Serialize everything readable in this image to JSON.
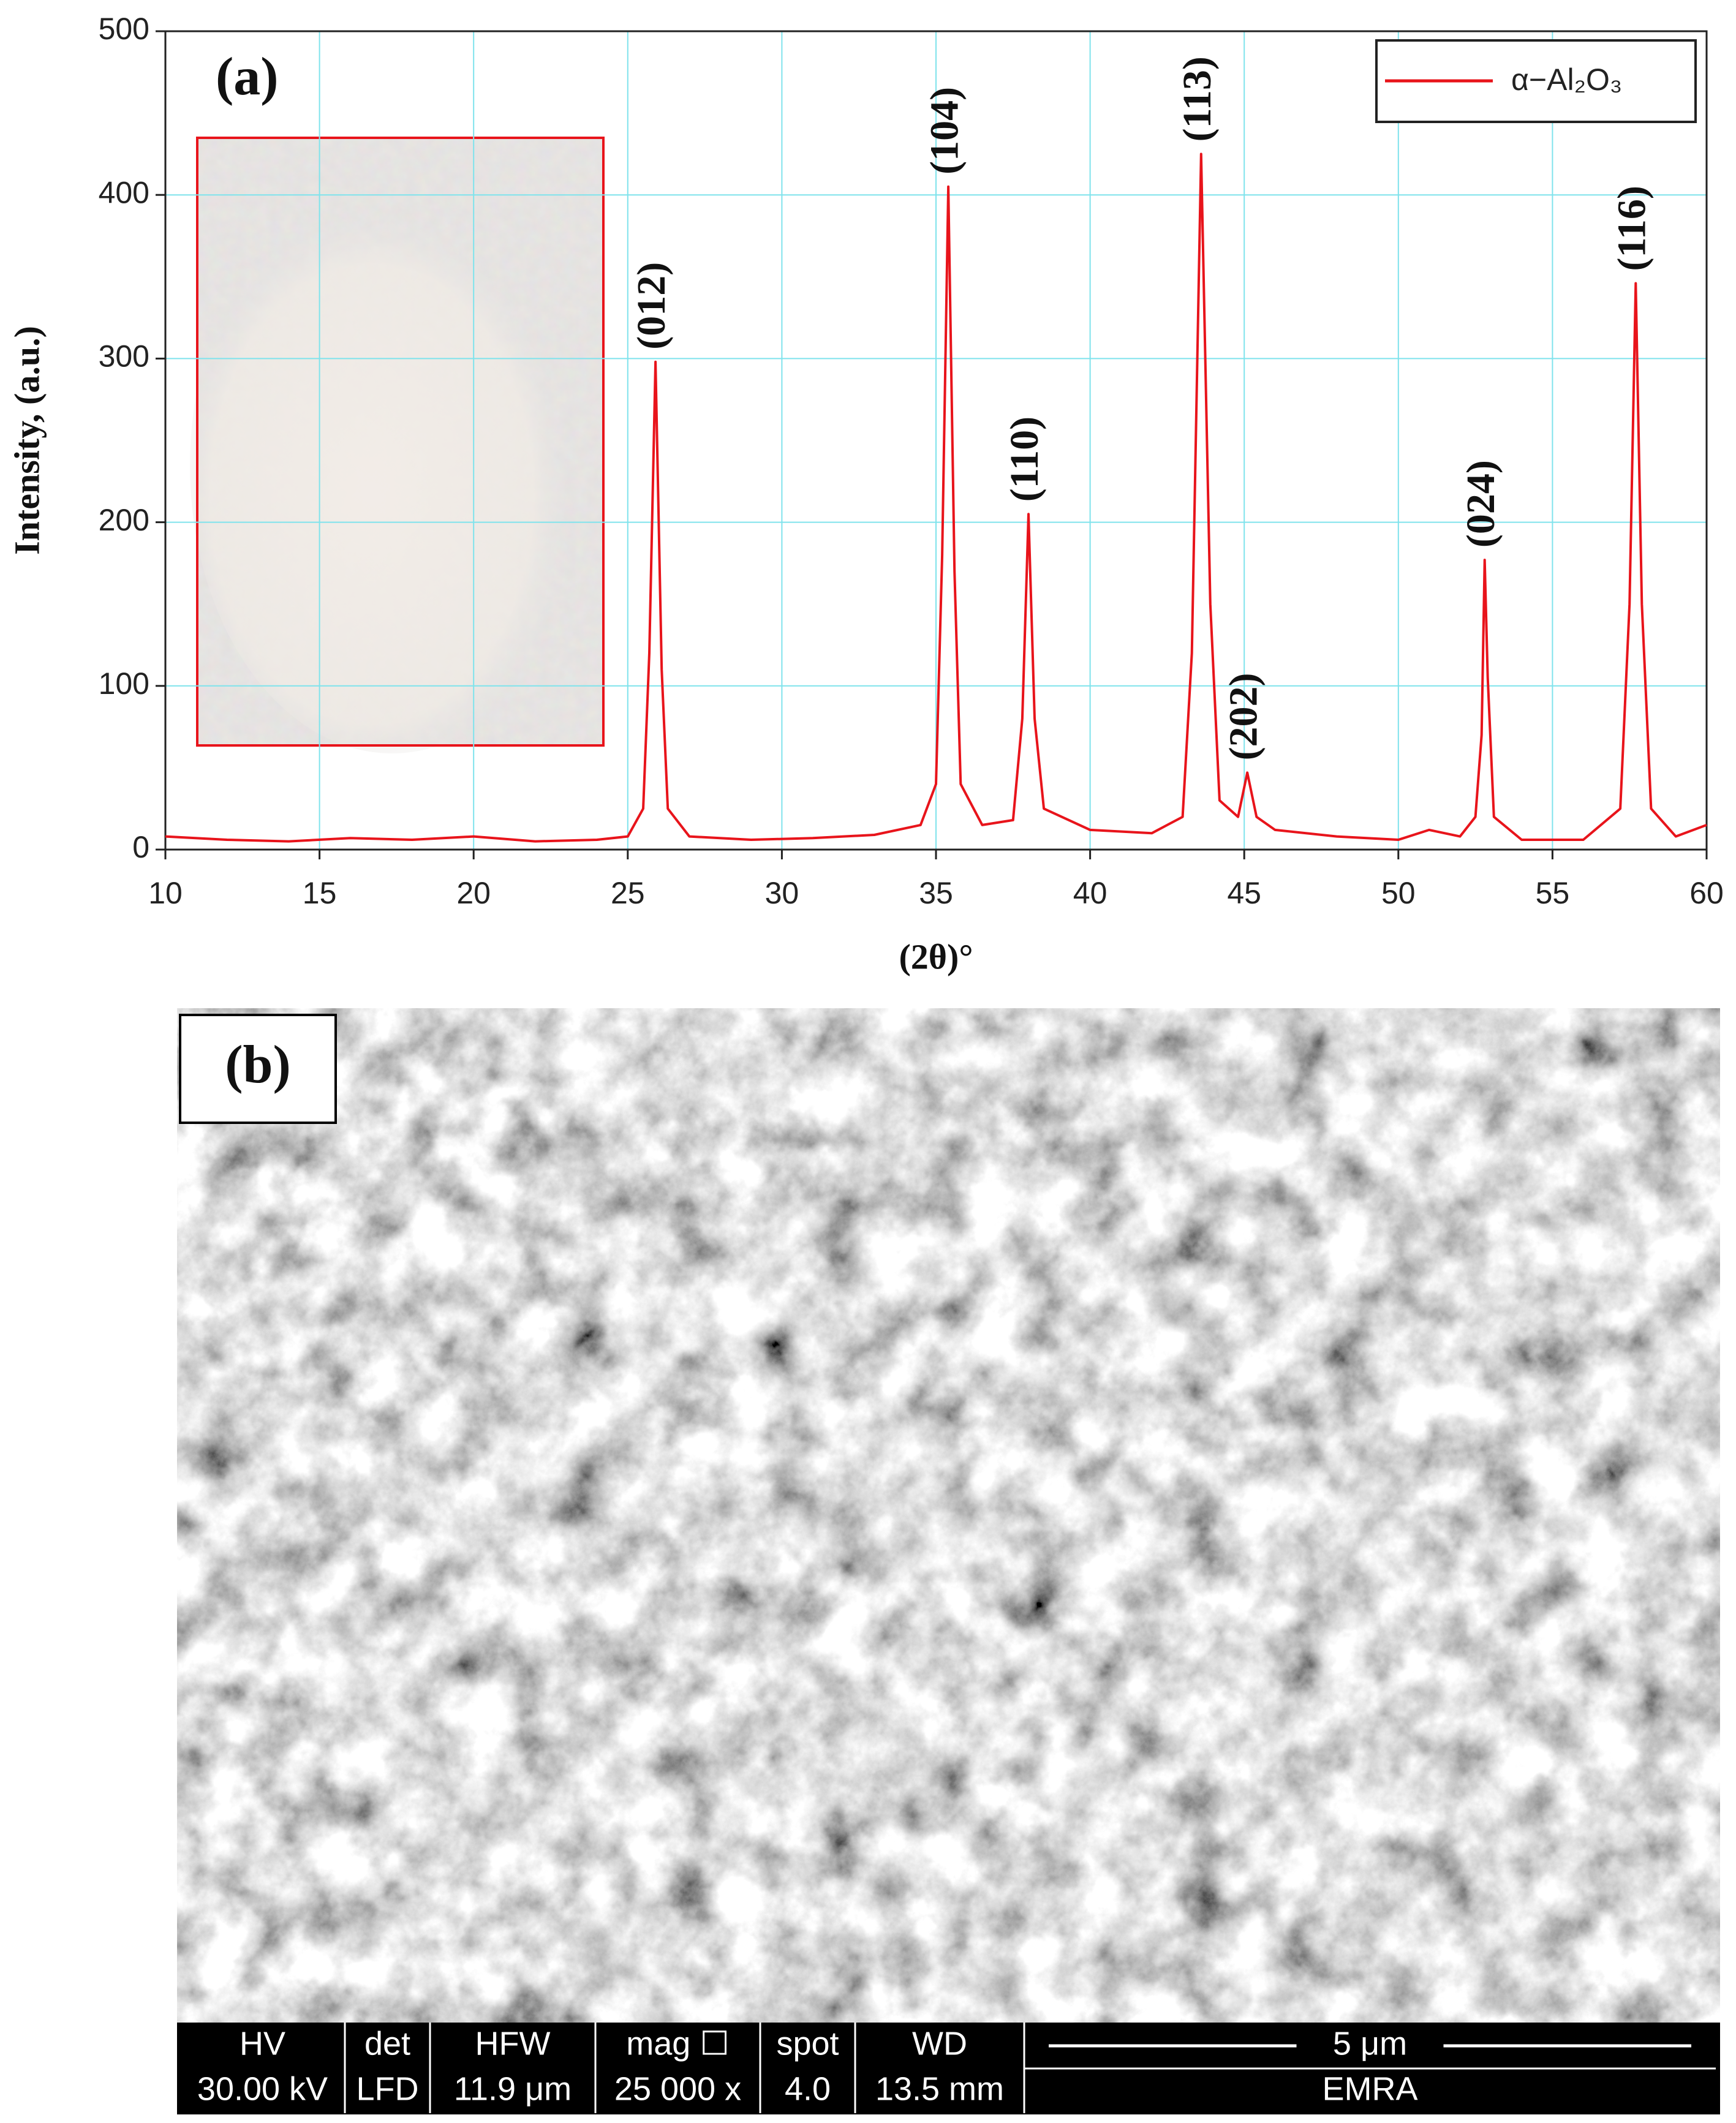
{
  "chart_data": {
    "type": "line",
    "panel_label": "(a)",
    "xlabel": "(2θ)°",
    "ylabel": "Intensity, (a.u.)",
    "x": [
      10,
      12,
      14,
      16,
      18,
      20,
      22,
      24,
      25,
      25.5,
      25.7,
      25.9,
      26.1,
      26.3,
      27,
      29,
      31,
      33,
      34.5,
      35,
      35.2,
      35.4,
      35.6,
      35.8,
      36.5,
      37.5,
      37.8,
      38.0,
      38.2,
      38.5,
      40,
      42,
      43,
      43.3,
      43.6,
      43.9,
      44.2,
      44.8,
      45.1,
      45.4,
      46,
      48,
      50,
      51,
      52,
      52.5,
      52.7,
      52.8,
      52.9,
      53.1,
      54,
      56,
      57.2,
      57.5,
      57.7,
      57.9,
      58.2,
      59,
      60
    ],
    "series": [
      {
        "name": "α−Al₂O₃",
        "color": "#e8141b",
        "values": [
          8,
          6,
          5,
          7,
          6,
          8,
          5,
          6,
          8,
          25,
          120,
          298,
          110,
          25,
          8,
          6,
          7,
          9,
          15,
          40,
          180,
          405,
          170,
          40,
          15,
          18,
          80,
          205,
          80,
          25,
          12,
          10,
          20,
          120,
          425,
          150,
          30,
          20,
          47,
          20,
          12,
          8,
          6,
          12,
          8,
          20,
          70,
          177,
          105,
          20,
          6,
          6,
          25,
          150,
          346,
          150,
          25,
          8,
          15
        ]
      }
    ],
    "annotations": [
      {
        "label": "(012)",
        "x": 25.9,
        "y": 298
      },
      {
        "label": "(104)",
        "x": 35.4,
        "y": 405
      },
      {
        "label": "(110)",
        "x": 38.0,
        "y": 205
      },
      {
        "label": "(113)",
        "x": 43.6,
        "y": 425
      },
      {
        "label": "(202)",
        "x": 45.1,
        "y": 47
      },
      {
        "label": "(024)",
        "x": 52.8,
        "y": 177
      },
      {
        "label": "(116)",
        "x": 57.7,
        "y": 346
      }
    ],
    "xlim": [
      10,
      60
    ],
    "xticks": [
      10,
      15,
      20,
      25,
      30,
      35,
      40,
      45,
      50,
      55,
      60
    ],
    "ylim": [
      0,
      500
    ],
    "yticks": [
      0,
      100,
      200,
      300,
      400,
      500
    ],
    "grid": true,
    "legend": "upper right"
  },
  "panel_b": {
    "label": "(b)",
    "info_bar": {
      "headers": [
        "HV",
        "det",
        "HFW",
        "mag ☐",
        "spot",
        "WD"
      ],
      "values": [
        "30.00 kV",
        "LFD",
        "11.9 μm",
        "25 000 x",
        "4.0",
        "13.5 mm"
      ],
      "scale_bar": "5 μm",
      "lab": "EMRA"
    }
  }
}
